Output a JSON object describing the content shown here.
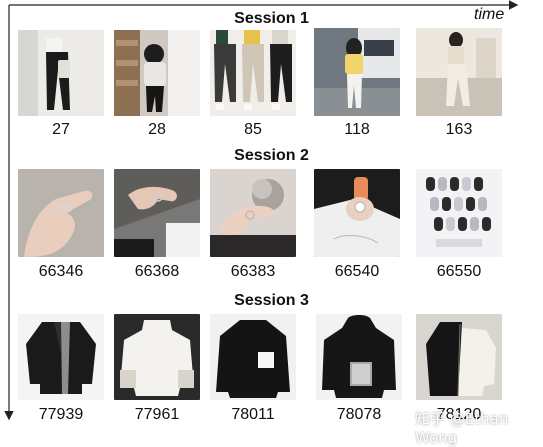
{
  "axis_label": "time",
  "sessions": [
    {
      "title": "Session 1",
      "item_category": "pants",
      "items": [
        {
          "id": "27",
          "icon": "black-pants-photo"
        },
        {
          "id": "28",
          "icon": "black-pants-photo"
        },
        {
          "id": "85",
          "icon": "pants-three-pairs-photo"
        },
        {
          "id": "118",
          "icon": "white-pants-photo"
        },
        {
          "id": "163",
          "icon": "white-pants-photo"
        }
      ]
    },
    {
      "title": "Session 2",
      "item_category": "rings and nails",
      "items": [
        {
          "id": "66346",
          "icon": "ring-hand-photo"
        },
        {
          "id": "66368",
          "icon": "ring-hand-photo"
        },
        {
          "id": "66383",
          "icon": "ring-hand-photo"
        },
        {
          "id": "66540",
          "icon": "ring-hand-photo"
        },
        {
          "id": "66550",
          "icon": "nail-tips-photo"
        }
      ]
    },
    {
      "title": "Session 3",
      "item_category": "sweaters and jackets",
      "items": [
        {
          "id": "77939",
          "icon": "black-jacket-photo"
        },
        {
          "id": "77961",
          "icon": "white-sweater-photo"
        },
        {
          "id": "78011",
          "icon": "black-sweater-photo"
        },
        {
          "id": "78078",
          "icon": "black-hoodie-photo"
        },
        {
          "id": "78120",
          "icon": "black-white-jacket-photo"
        }
      ]
    }
  ],
  "watermark": "知乎 @Ethan Wong",
  "colors": {
    "axis": "#222222",
    "text": "#111111"
  }
}
